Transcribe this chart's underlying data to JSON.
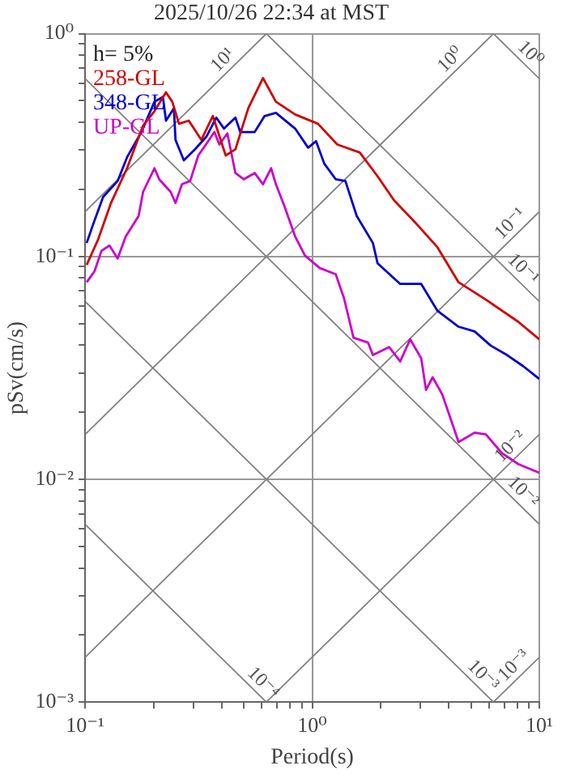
{
  "chart_data": {
    "type": "line",
    "title": "2025/10/26 22:34 at MST",
    "xlabel": "Period(s)",
    "ylabel": "pSv(cm/s)",
    "log": "xy",
    "grid": true,
    "legend": "top left",
    "marker": "none",
    "line_style": "solid",
    "xlim": [
      0.1,
      10
    ],
    "ylim": [
      0.001,
      1
    ],
    "xticks": [
      {
        "value": 0.1,
        "label": "10⁻¹"
      },
      {
        "value": 0.2,
        "label": null
      },
      {
        "value": 0.3,
        "label": null
      },
      {
        "value": 0.4,
        "label": null
      },
      {
        "value": 0.5,
        "label": null
      },
      {
        "value": 0.6,
        "label": null
      },
      {
        "value": 0.7,
        "label": null
      },
      {
        "value": 0.8,
        "label": null
      },
      {
        "value": 0.9,
        "label": null
      },
      {
        "value": 1,
        "label": "10⁰"
      },
      {
        "value": 2,
        "label": null
      },
      {
        "value": 3,
        "label": null
      },
      {
        "value": 4,
        "label": null
      },
      {
        "value": 5,
        "label": null
      },
      {
        "value": 6,
        "label": null
      },
      {
        "value": 7,
        "label": null
      },
      {
        "value": 8,
        "label": null
      },
      {
        "value": 9,
        "label": null
      },
      {
        "value": 10,
        "label": "10¹"
      }
    ],
    "yticks": [
      {
        "value": 0.001,
        "label": "10⁻³"
      },
      {
        "value": 0.002,
        "label": null
      },
      {
        "value": 0.003,
        "label": null
      },
      {
        "value": 0.004,
        "label": null
      },
      {
        "value": 0.005,
        "label": null
      },
      {
        "value": 0.006,
        "label": null
      },
      {
        "value": 0.007,
        "label": null
      },
      {
        "value": 0.008,
        "label": null
      },
      {
        "value": 0.009,
        "label": null
      },
      {
        "value": 0.01,
        "label": "10⁻²"
      },
      {
        "value": 0.02,
        "label": null
      },
      {
        "value": 0.03,
        "label": null
      },
      {
        "value": 0.04,
        "label": null
      },
      {
        "value": 0.05,
        "label": null
      },
      {
        "value": 0.06,
        "label": null
      },
      {
        "value": 0.07,
        "label": null
      },
      {
        "value": 0.08,
        "label": null
      },
      {
        "value": 0.09,
        "label": null
      },
      {
        "value": 0.1,
        "label": "10⁻¹"
      },
      {
        "value": 0.2,
        "label": null
      },
      {
        "value": 0.3,
        "label": null
      },
      {
        "value": 0.4,
        "label": null
      },
      {
        "value": 0.5,
        "label": null
      },
      {
        "value": 0.6,
        "label": null
      },
      {
        "value": 0.7,
        "label": null
      },
      {
        "value": 0.8,
        "label": null
      },
      {
        "value": 0.9,
        "label": null
      },
      {
        "value": 1,
        "label": "10⁰"
      }
    ],
    "series": [
      {
        "name": "258-GL",
        "color": "#d00000",
        "x": [
          0.1016,
          0.114,
          0.13,
          0.153,
          0.18,
          0.202,
          0.227,
          0.242,
          0.259,
          0.286,
          0.325,
          0.365,
          0.416,
          0.459,
          0.523,
          0.607,
          0.692,
          0.841,
          1.06,
          1.29,
          1.62,
          1.94,
          2.29,
          2.88,
          3.56,
          4.41,
          5.82,
          8.08,
          10
        ],
        "values": [
          0.0917,
          0.119,
          0.174,
          0.249,
          0.387,
          0.449,
          0.546,
          0.495,
          0.394,
          0.407,
          0.334,
          0.427,
          0.284,
          0.303,
          0.463,
          0.632,
          0.495,
          0.434,
          0.394,
          0.318,
          0.293,
          0.229,
          0.179,
          0.14,
          0.11,
          0.0766,
          0.064,
          0.0509,
          0.0425
        ]
      },
      {
        "name": "348-GL",
        "color": "#0000cc",
        "x": [
          0.1016,
          0.1086,
          0.12,
          0.139,
          0.153,
          0.177,
          0.202,
          0.22,
          0.227,
          0.246,
          0.25,
          0.272,
          0.305,
          0.342,
          0.378,
          0.409,
          0.459,
          0.482,
          0.558,
          0.617,
          0.692,
          0.841,
          0.959,
          1.04,
          1.13,
          1.27,
          1.4,
          1.57,
          1.85,
          1.94,
          2.44,
          3.02,
          3.56,
          4.41,
          5.19,
          6.11,
          7.21,
          8.49,
          10
        ],
        "values": [
          0.115,
          0.14,
          0.185,
          0.218,
          0.279,
          0.362,
          0.495,
          0.52,
          0.407,
          0.463,
          0.334,
          0.27,
          0.303,
          0.345,
          0.42,
          0.375,
          0.42,
          0.362,
          0.362,
          0.427,
          0.441,
          0.375,
          0.308,
          0.329,
          0.261,
          0.222,
          0.218,
          0.152,
          0.115,
          0.0932,
          0.0753,
          0.0753,
          0.057,
          0.0484,
          0.0461,
          0.0398,
          0.0361,
          0.0322,
          0.0282
        ]
      },
      {
        "name": "UP-GL",
        "color": "#cc00cc",
        "x": [
          0.1016,
          0.11,
          0.118,
          0.128,
          0.139,
          0.151,
          0.172,
          0.18,
          0.202,
          0.212,
          0.238,
          0.25,
          0.267,
          0.29,
          0.315,
          0.348,
          0.371,
          0.39,
          0.423,
          0.459,
          0.499,
          0.558,
          0.607,
          0.659,
          0.692,
          0.75,
          0.841,
          0.929,
          1.08,
          1.27,
          1.38,
          1.52,
          1.76,
          1.85,
          2.18,
          2.44,
          2.7,
          3.02,
          3.17,
          3.39,
          3.74,
          4.41,
          5.19,
          5.82,
          6.85,
          8.08,
          10
        ],
        "values": [
          0.0766,
          0.0859,
          0.106,
          0.112,
          0.0979,
          0.123,
          0.152,
          0.195,
          0.249,
          0.222,
          0.195,
          0.174,
          0.211,
          0.218,
          0.284,
          0.329,
          0.362,
          0.318,
          0.357,
          0.237,
          0.222,
          0.237,
          0.211,
          0.249,
          0.211,
          0.171,
          0.123,
          0.101,
          0.0887,
          0.0832,
          0.065,
          0.0432,
          0.0411,
          0.0361,
          0.0392,
          0.0338,
          0.0425,
          0.0349,
          0.0252,
          0.0287,
          0.024,
          0.0147,
          0.0162,
          0.0159,
          0.0131,
          0.0117,
          0.0107
        ]
      },
      {
        "type": "line",
        "color": "#808080",
        "x": [
          0.1,
          0.628
        ],
        "values": [
          0.00628,
          0.001
        ]
      },
      {
        "type": "line",
        "color": "#808080",
        "x": [
          0.1,
          6.28
        ],
        "values": [
          0.0628,
          0.001
        ]
      },
      {
        "type": "line",
        "color": "#808080",
        "x": [
          0.1,
          10
        ],
        "values": [
          0.628,
          0.00628
        ]
      },
      {
        "type": "line",
        "color": "#808080",
        "x": [
          0.628,
          10
        ],
        "values": [
          1,
          0.0628
        ]
      },
      {
        "type": "line",
        "color": "#808080",
        "x": [
          6.28,
          10
        ],
        "values": [
          1,
          0.628
        ]
      },
      {
        "type": "line",
        "color": "#808080",
        "x": [
          6.28,
          10
        ],
        "values": [
          0.001,
          0.00159
        ]
      },
      {
        "type": "line",
        "color": "#808080",
        "x": [
          0.628,
          10
        ],
        "values": [
          0.001,
          0.0159
        ]
      },
      {
        "type": "line",
        "color": "#808080",
        "x": [
          0.1,
          10
        ],
        "values": [
          0.00159,
          0.159
        ]
      },
      {
        "type": "line",
        "color": "#808080",
        "x": [
          0.1,
          6.28
        ],
        "values": [
          0.0159,
          1
        ]
      },
      {
        "type": "line",
        "color": "#808080",
        "x": [
          0.1,
          0.628
        ],
        "values": [
          0.159,
          1
        ]
      }
    ],
    "annotations": [
      "h= 5%",
      {
        "text": "10¹",
        "x": 0.44,
        "y": 0.7
      },
      {
        "text": "10⁰",
        "x": 4.41,
        "y": 0.702
      },
      {
        "text": "10⁰",
        "x": 8.4,
        "y": 0.748
      },
      {
        "text": "10⁻¹",
        "x": 8.1,
        "y": 0.129
      },
      {
        "text": "10⁻¹",
        "x": 7.8,
        "y": 0.0806
      },
      {
        "text": "10⁻²",
        "x": 8.1,
        "y": 0.0129
      },
      {
        "text": "10⁻²",
        "x": 7.8,
        "y": 0.00806
      },
      {
        "text": "10⁻⁴",
        "x": 0.56,
        "y": 0.00112
      },
      {
        "text": "10⁻³",
        "x": 5.2,
        "y": 0.00121
      },
      {
        "text": "10⁻³",
        "x": 8.4,
        "y": 0.00134
      }
    ]
  }
}
